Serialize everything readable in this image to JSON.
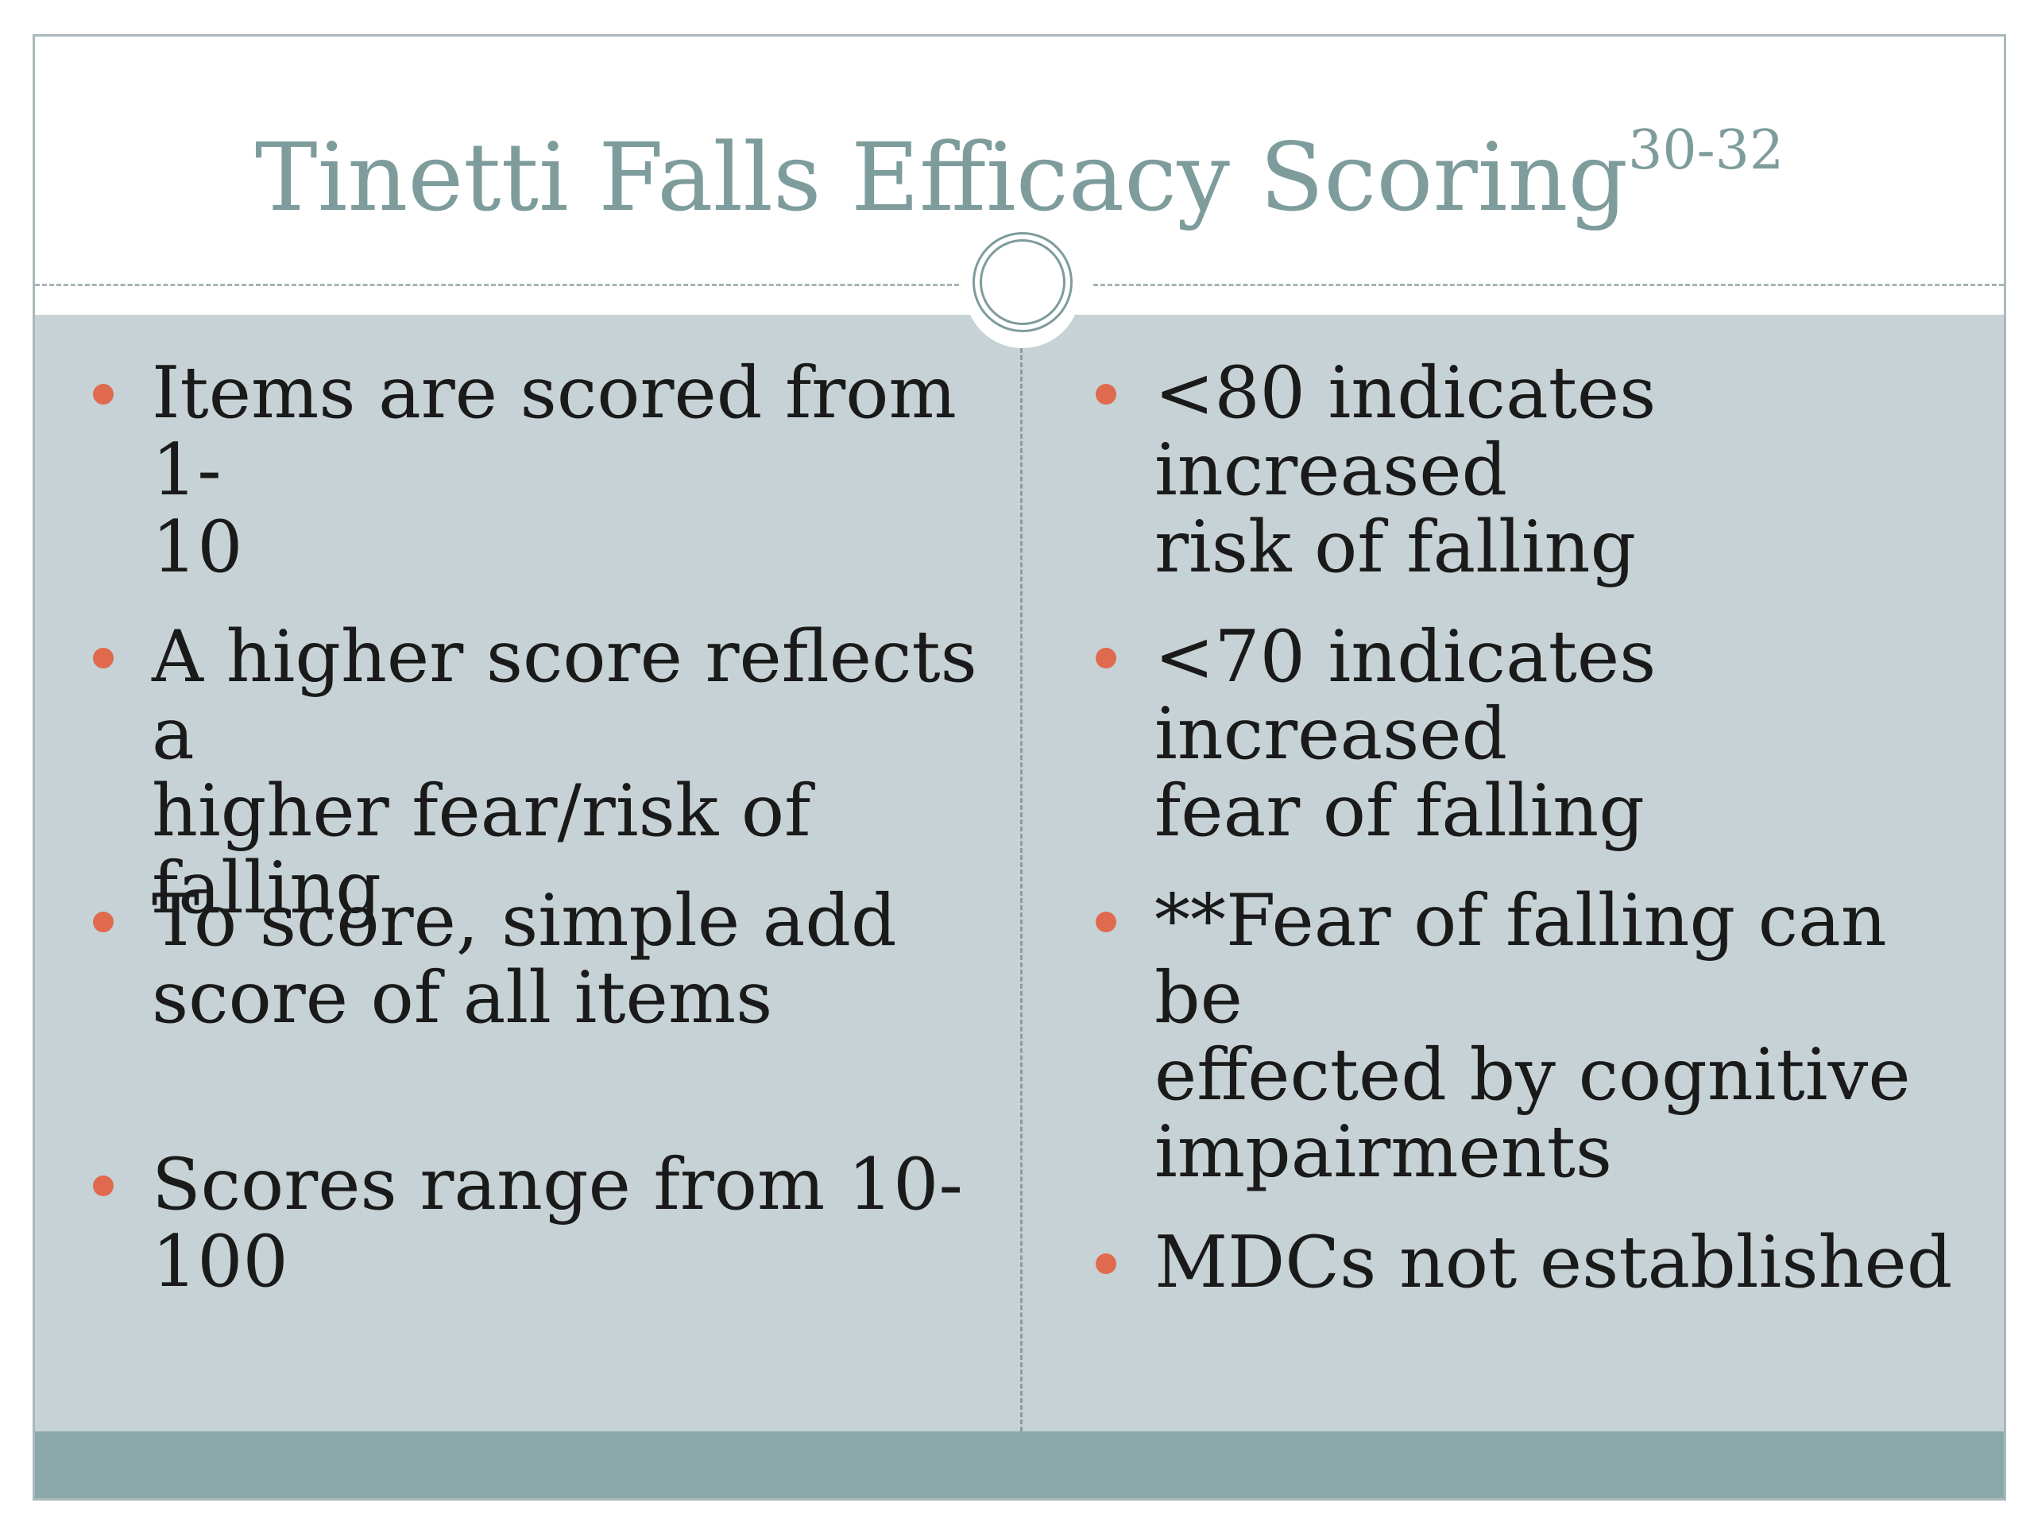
{
  "slide": {
    "title": "Tinetti Falls Efficacy Scoring",
    "title_superscript": "30-32"
  },
  "left_column": {
    "bullets": [
      "Items are scored from 1-\n10",
      "A higher score reflects a\nhigher fear/risk of falling",
      "To score, simple add\nscore of all items",
      "Scores range from 10-\n100"
    ]
  },
  "right_column": {
    "bullets": [
      "<80 indicates increased\nrisk of falling",
      "<70 indicates increased\nfear of falling",
      "**Fear of falling can be\neffected by cognitive\nimpairments",
      "MDCs not established"
    ]
  },
  "colors": {
    "title": "#7e9c9c",
    "content_background": "#c6d2d6",
    "bullet": "#e06a4e",
    "footer": "#8ba8aa"
  }
}
